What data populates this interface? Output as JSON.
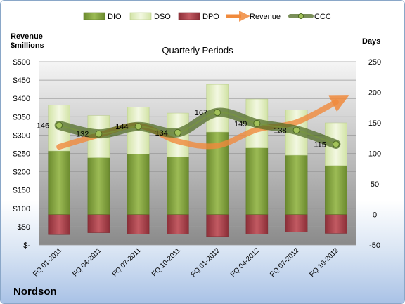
{
  "chart_data": {
    "type": "bar",
    "title": "Quarterly Periods",
    "company": "Nordson",
    "y_left_label": [
      "Revenue",
      "$millions"
    ],
    "y_right_label": "Days",
    "ylim_left": [
      0,
      500
    ],
    "ylim_right": [
      -50,
      250
    ],
    "y_left_ticks": [
      "$-",
      "$50",
      "$100",
      "$150",
      "$200",
      "$250",
      "$300",
      "$350",
      "$400",
      "$450",
      "$500"
    ],
    "y_right_ticks": [
      "-50",
      "0",
      "50",
      "100",
      "150",
      "200",
      "250"
    ],
    "categories": [
      "FQ 01-2011",
      "FQ 04-2011",
      "FQ 07-2011",
      "FQ 10-2011",
      "FQ 01-2012",
      "FQ 04-2012",
      "FQ 07-2012",
      "FQ 10-2012"
    ],
    "legend": [
      "DIO",
      "DSO",
      "DPO",
      "Revenue",
      "CCC"
    ],
    "series": [
      {
        "name": "DIO",
        "axis": "right",
        "values": [
          104,
          93,
          99,
          94,
          135,
          109,
          97,
          80
        ]
      },
      {
        "name": "DSO",
        "axis": "right",
        "values": [
          75,
          69,
          77,
          72,
          78,
          80,
          74,
          70
        ]
      },
      {
        "name": "DPO",
        "axis": "right",
        "values": [
          -33,
          -30,
          -32,
          -32,
          -36,
          -32,
          -29,
          -31
        ]
      },
      {
        "name": "Revenue",
        "axis": "left",
        "values": [
          268,
          300,
          326,
          283,
          271,
          315,
          335,
          390
        ]
      },
      {
        "name": "CCC",
        "axis": "right",
        "values": [
          146,
          132,
          144,
          134,
          167,
          149,
          138,
          115
        ]
      }
    ],
    "ccc_labels": [
      "146",
      "132",
      "144",
      "134",
      "167",
      "149",
      "138",
      "115"
    ],
    "colors": {
      "DIO": "#7a9a3a",
      "DSO": "#e3efc4",
      "DPO": "#a8404a",
      "Revenue": "#f08a3c",
      "CCC": "#5c7a2a"
    },
    "grid": true,
    "legend_position": "top"
  }
}
